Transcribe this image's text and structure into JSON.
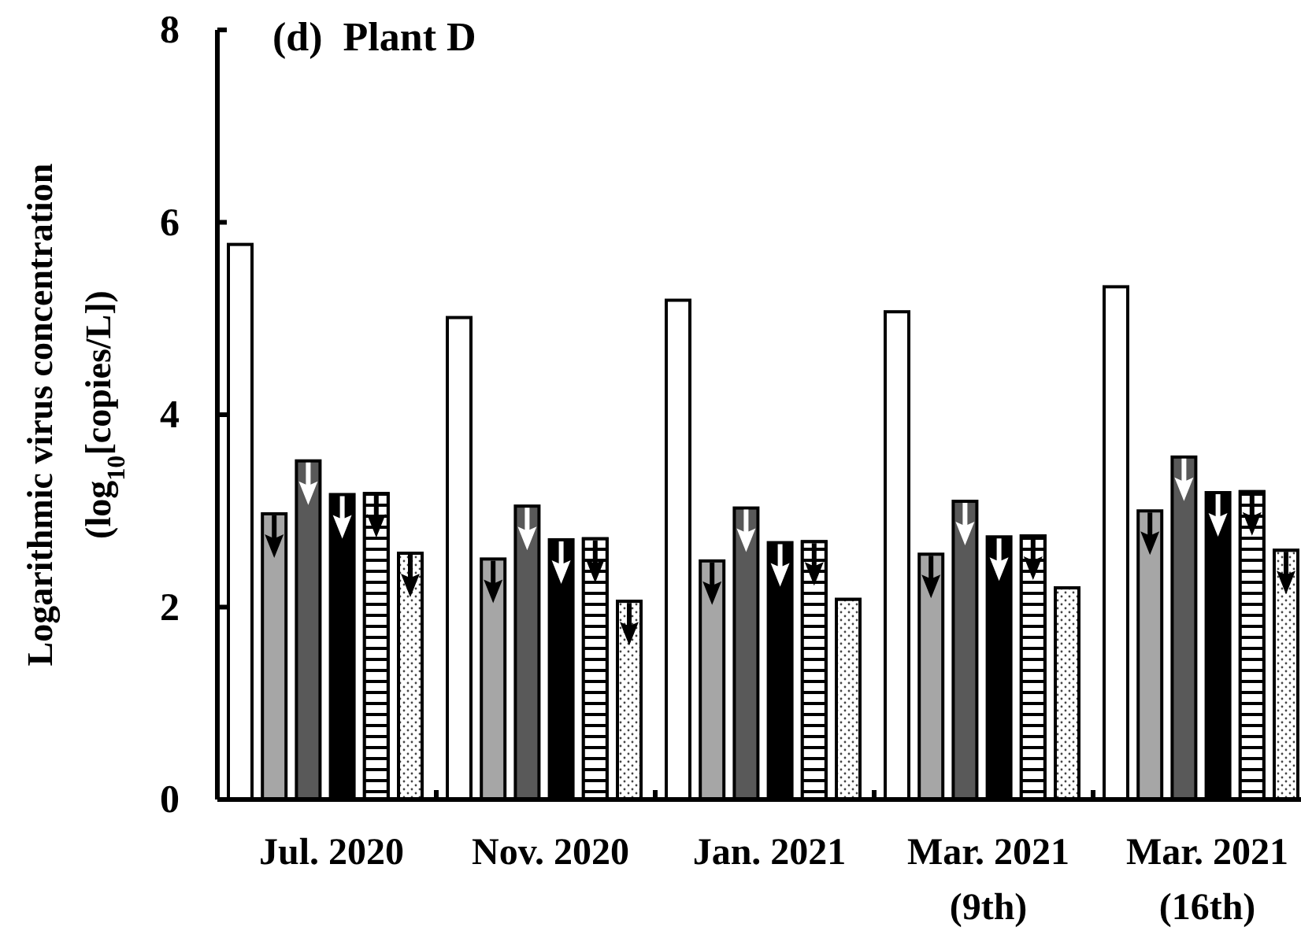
{
  "chart_data": {
    "type": "bar",
    "title": "(d)  Plant D",
    "ylabel": "Logarithmic virus concentration\n(log$_{10}$[copies/L])",
    "categories": [
      "Jul. 2020",
      "Nov. 2020",
      "Jan. 2021",
      "Mar. 2021\n(9th)",
      "Mar. 2021\n(16th)"
    ],
    "series": [
      {
        "color": "#ffffff",
        "values": [
          5.77,
          5.01,
          5.19,
          5.07,
          5.33
        ]
      },
      {
        "color": "#a6a6a6",
        "values": [
          2.97,
          2.5,
          2.48,
          2.55,
          3.0
        ]
      },
      {
        "color": "#595959",
        "values": [
          3.52,
          3.05,
          3.03,
          3.1,
          3.56
        ]
      },
      {
        "color": "#000000",
        "values": [
          3.17,
          2.7,
          2.67,
          2.73,
          3.19
        ]
      },
      {
        "color": "#ffffff",
        "values": [
          3.18,
          2.71,
          2.68,
          2.74,
          3.2
        ]
      },
      {
        "color": "#ffffff",
        "values": [
          2.56,
          2.06,
          2.08,
          2.2,
          2.59
        ]
      }
    ],
    "ylim": [
      0,
      8
    ],
    "yticks": [
      0,
      2,
      4,
      6,
      8
    ],
    "grid": false
  }
}
